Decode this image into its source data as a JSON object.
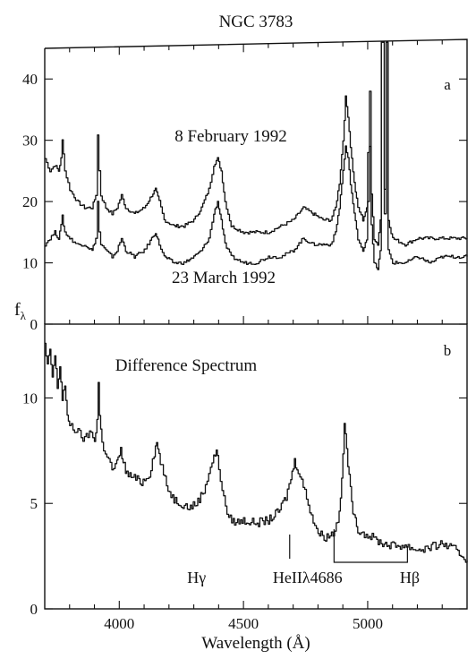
{
  "figure_title": "NGC 3783",
  "ylabel": "f",
  "ylabel_sub": "λ",
  "xlabel": "Wavelength (Å)",
  "chart_data": [
    {
      "type": "line",
      "panel_label": "a",
      "xlim": [
        3700,
        5400
      ],
      "ylim": [
        0,
        45
      ],
      "yticks": [
        0,
        10,
        20,
        30,
        40
      ],
      "series": [
        {
          "name": "8 February 1992",
          "x": [
            3700,
            3720,
            3740,
            3755,
            3765,
            3770,
            3775,
            3780,
            3800,
            3830,
            3860,
            3890,
            3905,
            3912,
            3918,
            3925,
            3945,
            3970,
            3990,
            4008,
            4025,
            4060,
            4100,
            4130,
            4145,
            4160,
            4180,
            4220,
            4260,
            4300,
            4330,
            4360,
            4380,
            4395,
            4410,
            4425,
            4450,
            4500,
            4550,
            4600,
            4650,
            4700,
            4740,
            4780,
            4820,
            4850,
            4870,
            4885,
            4900,
            4910,
            4920,
            4930,
            4945,
            4960,
            4980,
            4995,
            5000,
            5007,
            5014,
            5025,
            5040,
            5050,
            5055,
            5060,
            5067,
            5075,
            5082,
            5100,
            5150,
            5200,
            5250,
            5300,
            5350,
            5400
          ],
          "y": [
            27,
            25,
            26,
            25,
            27,
            30,
            28,
            25,
            22,
            20,
            19,
            19,
            21,
            31,
            25,
            21,
            19,
            18,
            19,
            21,
            19,
            18,
            19,
            21,
            22,
            20,
            17,
            16,
            16,
            17,
            19,
            22,
            26,
            27,
            25,
            20,
            16,
            15,
            15,
            15,
            16,
            17,
            19,
            18,
            17,
            17,
            19,
            23,
            30,
            37,
            34,
            29,
            23,
            19,
            17,
            19,
            28,
            38,
            21,
            14,
            13,
            17,
            46,
            46,
            22,
            46,
            17,
            14,
            13,
            14,
            14,
            14,
            14,
            14
          ]
        },
        {
          "name": "23 March 1992",
          "x": [
            3700,
            3720,
            3740,
            3755,
            3765,
            3770,
            3775,
            3780,
            3800,
            3830,
            3860,
            3890,
            3905,
            3912,
            3918,
            3925,
            3945,
            3970,
            3990,
            4008,
            4025,
            4060,
            4100,
            4130,
            4145,
            4160,
            4180,
            4220,
            4260,
            4300,
            4330,
            4360,
            4380,
            4395,
            4410,
            4425,
            4450,
            4500,
            4550,
            4600,
            4650,
            4700,
            4740,
            4780,
            4820,
            4850,
            4870,
            4885,
            4900,
            4910,
            4920,
            4930,
            4945,
            4960,
            4980,
            4995,
            5000,
            5007,
            5014,
            5025,
            5040,
            5050,
            5055,
            5060,
            5067,
            5075,
            5082,
            5100,
            5150,
            5200,
            5250,
            5300,
            5350,
            5400
          ],
          "y": [
            13,
            14,
            15,
            14,
            16,
            18,
            16,
            15,
            14,
            13,
            13,
            12,
            14,
            20,
            15,
            13,
            12,
            11,
            12,
            14,
            12,
            11,
            12,
            14,
            15,
            13,
            11,
            10,
            10,
            11,
            12,
            14,
            18,
            20,
            17,
            13,
            11,
            10,
            10,
            11,
            11,
            12,
            14,
            13,
            13,
            13,
            15,
            19,
            25,
            29,
            27,
            23,
            18,
            14,
            12,
            14,
            20,
            29,
            16,
            10,
            9,
            12,
            46,
            46,
            18,
            46,
            12,
            10,
            10,
            11,
            10,
            11,
            11,
            11
          ]
        }
      ]
    },
    {
      "type": "line",
      "panel_label": "b",
      "xlim": [
        3700,
        5400
      ],
      "ylim": [
        0,
        13.5
      ],
      "yticks": [
        0,
        5,
        10
      ],
      "xticks": [
        4000,
        4500,
        5000
      ],
      "series": [
        {
          "name": "Difference Spectrum",
          "x": [
            3700,
            3710,
            3720,
            3730,
            3740,
            3750,
            3760,
            3770,
            3780,
            3790,
            3800,
            3820,
            3840,
            3860,
            3880,
            3900,
            3910,
            3915,
            3920,
            3930,
            3950,
            3970,
            3990,
            4005,
            4015,
            4030,
            4060,
            4090,
            4120,
            4140,
            4150,
            4165,
            4190,
            4220,
            4250,
            4280,
            4310,
            4340,
            4360,
            4380,
            4390,
            4400,
            4420,
            4440,
            4470,
            4500,
            4530,
            4560,
            4600,
            4640,
            4670,
            4690,
            4705,
            4720,
            4740,
            4760,
            4780,
            4800,
            4830,
            4860,
            4880,
            4895,
            4905,
            4915,
            4925,
            4935,
            4945,
            4960,
            4980,
            5000,
            5030,
            5060,
            5100,
            5150,
            5200,
            5250,
            5300,
            5350,
            5400
          ],
          "y": [
            12.5,
            11.5,
            12.2,
            11,
            12,
            10.5,
            11.5,
            10,
            10.6,
            9,
            8.8,
            8.5,
            8.3,
            8,
            8.4,
            8,
            9,
            10.7,
            9.2,
            7.8,
            7.3,
            6.6,
            6.9,
            7.5,
            7,
            6.4,
            6.2,
            6,
            6.4,
            7.4,
            7.9,
            7,
            5.8,
            5.2,
            5,
            4.8,
            5,
            5.6,
            6.5,
            7.2,
            7.5,
            6.7,
            5.2,
            4.3,
            4.1,
            4.2,
            4.1,
            4.1,
            4.2,
            4.6,
            5.3,
            6.2,
            7,
            6.6,
            5.8,
            5,
            4.2,
            3.6,
            3.4,
            3.6,
            4.2,
            6,
            8.8,
            7.6,
            6.2,
            5.1,
            4.3,
            3.8,
            3.6,
            3.5,
            3.3,
            3.1,
            3,
            3,
            2.8,
            2.9,
            3.1,
            2.8,
            2.3
          ]
        }
      ],
      "annotations": [
        {
          "label": "Hγ",
          "x": 4340
        },
        {
          "label": "HeIIλ4686",
          "x": 4686
        },
        {
          "label": "Hβ",
          "x": 4861
        }
      ]
    }
  ]
}
